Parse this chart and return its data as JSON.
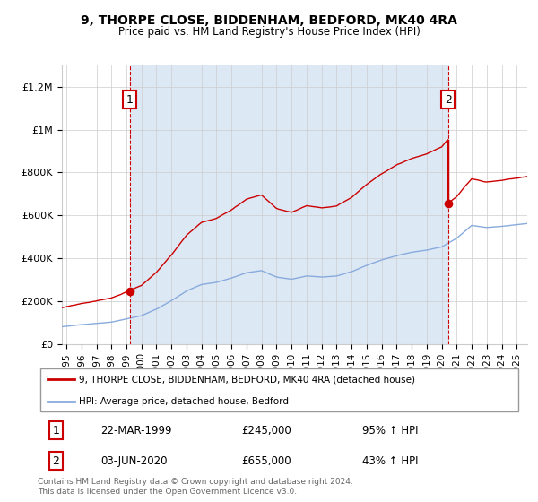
{
  "title": "9, THORPE CLOSE, BIDDENHAM, BEDFORD, MK40 4RA",
  "subtitle": "Price paid vs. HM Land Registry's House Price Index (HPI)",
  "legend_line1": "9, THORPE CLOSE, BIDDENHAM, BEDFORD, MK40 4RA (detached house)",
  "legend_line2": "HPI: Average price, detached house, Bedford",
  "footer": "Contains HM Land Registry data © Crown copyright and database right 2024.\nThis data is licensed under the Open Government Licence v3.0.",
  "transaction1_date": "22-MAR-1999",
  "transaction1_price": "£245,000",
  "transaction1_hpi": "95% ↑ HPI",
  "transaction2_date": "03-JUN-2020",
  "transaction2_price": "£655,000",
  "transaction2_hpi": "43% ↑ HPI",
  "price_color": "#cc0000",
  "hpi_color": "#88aadd",
  "shade_color": "#dde8f5",
  "dot_color": "#cc0000",
  "vline_color": "#cc0000",
  "ylim": [
    0,
    1300000
  ],
  "yticks": [
    0,
    200000,
    400000,
    600000,
    800000,
    1000000,
    1200000
  ],
  "ytick_labels": [
    "£0",
    "£200K",
    "£400K",
    "£600K",
    "£800K",
    "£1M",
    "£1.2M"
  ],
  "xstart": 1994.7,
  "xend": 2025.7,
  "t1": 1999.22,
  "t2": 2020.42,
  "price1": 245000,
  "price2": 655000
}
